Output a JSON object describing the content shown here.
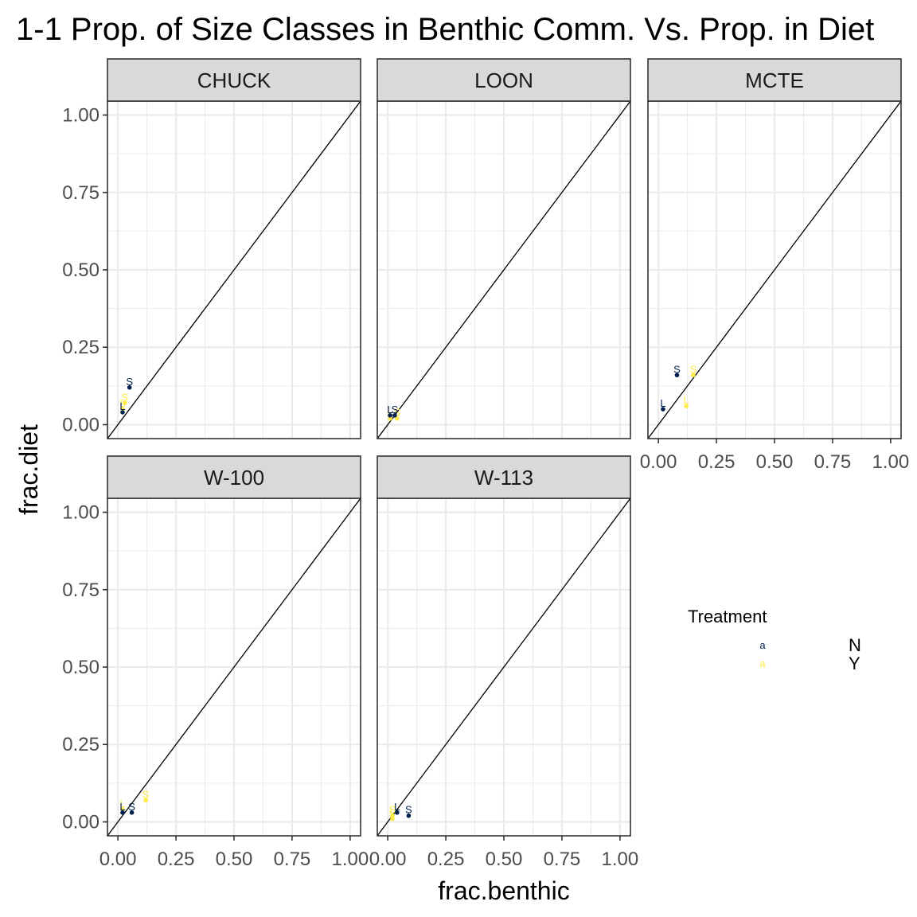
{
  "chart_data": {
    "type": "scatter",
    "title": "1-1 Prop. of Size Classes in Benthic Comm. Vs. Prop. in Diet",
    "xlabel": "frac.benthic",
    "ylabel": "frac.diet",
    "xlim": [
      -0.045,
      1.045
    ],
    "ylim": [
      -0.045,
      1.045
    ],
    "x_ticks": [
      0,
      0.25,
      0.5,
      0.75,
      1
    ],
    "y_ticks": [
      0,
      0.25,
      0.5,
      0.75,
      1
    ],
    "x_tick_labels": [
      "0.00",
      "0.25",
      "0.50",
      "0.75",
      "1.00"
    ],
    "y_tick_labels": [
      "0.00",
      "0.25",
      "0.50",
      "0.75",
      "1.00"
    ],
    "reference_line": "y = x",
    "grid": true,
    "legend": {
      "title": "Treatment",
      "placement": "right",
      "glyph": "a",
      "entries": [
        {
          "label": "N",
          "color": "#00204d"
        },
        {
          "label": "Y",
          "color": "#ffea46"
        }
      ]
    },
    "panels": [
      {
        "name": "CHUCK",
        "points": [
          {
            "treatment": "N",
            "label": "L",
            "x": 0.02,
            "y": 0.04
          },
          {
            "treatment": "N",
            "label": "S",
            "x": 0.05,
            "y": 0.12
          },
          {
            "treatment": "Y",
            "label": "L",
            "x": 0.02,
            "y": 0.05
          },
          {
            "treatment": "Y",
            "label": "S",
            "x": 0.03,
            "y": 0.07
          }
        ]
      },
      {
        "name": "LOON",
        "points": [
          {
            "treatment": "N",
            "label": "L",
            "x": 0.01,
            "y": 0.03
          },
          {
            "treatment": "N",
            "label": "S",
            "x": 0.03,
            "y": 0.03
          },
          {
            "treatment": "Y",
            "label": "L",
            "x": 0.01,
            "y": 0.02
          },
          {
            "treatment": "Y",
            "label": "S",
            "x": 0.04,
            "y": 0.02
          }
        ]
      },
      {
        "name": "MCTE",
        "points": [
          {
            "treatment": "N",
            "label": "L",
            "x": 0.02,
            "y": 0.05
          },
          {
            "treatment": "N",
            "label": "S",
            "x": 0.08,
            "y": 0.16
          },
          {
            "treatment": "Y",
            "label": "L",
            "x": 0.12,
            "y": 0.06
          },
          {
            "treatment": "Y",
            "label": "S",
            "x": 0.15,
            "y": 0.16
          }
        ]
      },
      {
        "name": "W-100",
        "points": [
          {
            "treatment": "N",
            "label": "L",
            "x": 0.02,
            "y": 0.03
          },
          {
            "treatment": "N",
            "label": "S",
            "x": 0.06,
            "y": 0.03
          },
          {
            "treatment": "Y",
            "label": "L",
            "x": 0.02,
            "y": 0.04
          },
          {
            "treatment": "Y",
            "label": "S",
            "x": 0.12,
            "y": 0.07
          }
        ]
      },
      {
        "name": "W-113",
        "points": [
          {
            "treatment": "N",
            "label": "L",
            "x": 0.04,
            "y": 0.03
          },
          {
            "treatment": "N",
            "label": "S",
            "x": 0.09,
            "y": 0.02
          },
          {
            "treatment": "Y",
            "label": "L",
            "x": 0.02,
            "y": 0.01
          },
          {
            "treatment": "Y",
            "label": "S",
            "x": 0.02,
            "y": 0.02
          }
        ]
      }
    ]
  }
}
